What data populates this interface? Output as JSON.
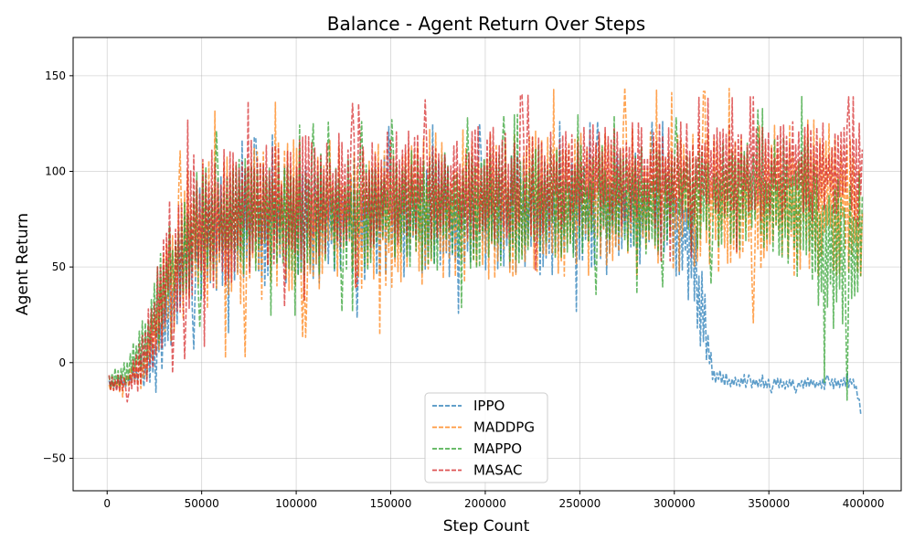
{
  "chart_data": {
    "type": "line",
    "title": "Balance - Agent Return Over Steps",
    "xlabel": "Step Count",
    "ylabel": "Agent Return",
    "xlim": [
      -18000,
      420000
    ],
    "ylim": [
      -67,
      170
    ],
    "xticks": [
      0,
      50000,
      100000,
      150000,
      200000,
      250000,
      300000,
      350000,
      400000
    ],
    "yticks": [
      -50,
      0,
      50,
      100,
      150
    ],
    "grid": true,
    "legend_position": "bottom-center",
    "line_style": "dashed",
    "series": [
      {
        "name": "IPPO",
        "color": "#1f77b4",
        "x": [
          0,
          10000,
          20000,
          30000,
          40000,
          50000,
          60000,
          70000,
          80000,
          90000,
          100000,
          120000,
          140000,
          160000,
          180000,
          200000,
          220000,
          240000,
          260000,
          280000,
          300000,
          305000,
          310000,
          315000,
          320000,
          330000,
          340000,
          360000,
          380000,
          395000,
          400000
        ],
        "mean": [
          -12,
          -10,
          -5,
          15,
          50,
          62,
          66,
          68,
          70,
          72,
          73,
          74,
          75,
          76,
          77,
          77,
          77,
          78,
          78,
          78,
          78,
          70,
          55,
          25,
          -6,
          -10,
          -11,
          -11,
          -11,
          -10,
          -30
        ],
        "amp": [
          3,
          4,
          8,
          18,
          30,
          32,
          32,
          32,
          32,
          32,
          32,
          32,
          32,
          32,
          32,
          32,
          32,
          32,
          32,
          32,
          32,
          34,
          35,
          30,
          5,
          3,
          3,
          3,
          3,
          3,
          3
        ]
      },
      {
        "name": "MADDPG",
        "color": "#ff7f0e",
        "x": [
          0,
          10000,
          20000,
          30000,
          40000,
          50000,
          60000,
          70000,
          80000,
          90000,
          100000,
          120000,
          140000,
          160000,
          180000,
          200000,
          220000,
          240000,
          260000,
          280000,
          300000,
          320000,
          340000,
          360000,
          380000,
          395000,
          400000
        ],
        "mean": [
          -13,
          -10,
          -2,
          30,
          60,
          68,
          70,
          72,
          74,
          76,
          77,
          78,
          79,
          80,
          82,
          82,
          82,
          83,
          83,
          84,
          84,
          85,
          85,
          86,
          86,
          87,
          60
        ],
        "amp": [
          3,
          5,
          12,
          28,
          38,
          40,
          42,
          44,
          42,
          40,
          40,
          40,
          40,
          42,
          42,
          40,
          40,
          40,
          40,
          40,
          38,
          38,
          40,
          42,
          42,
          40,
          35
        ]
      },
      {
        "name": "MAPPO",
        "color": "#2ca02c",
        "x": [
          0,
          10000,
          20000,
          30000,
          40000,
          50000,
          60000,
          70000,
          80000,
          100000,
          120000,
          140000,
          160000,
          180000,
          200000,
          220000,
          240000,
          260000,
          280000,
          300000,
          320000,
          340000,
          360000,
          370000,
          380000,
          395000,
          400000
        ],
        "mean": [
          -10,
          -5,
          10,
          40,
          62,
          70,
          74,
          76,
          76,
          76,
          78,
          78,
          80,
          80,
          80,
          82,
          82,
          84,
          84,
          86,
          86,
          86,
          84,
          80,
          60,
          50,
          70
        ],
        "amp": [
          4,
          8,
          15,
          25,
          30,
          32,
          32,
          32,
          32,
          32,
          32,
          32,
          32,
          32,
          32,
          32,
          32,
          30,
          30,
          28,
          28,
          30,
          35,
          40,
          45,
          45,
          40
        ]
      },
      {
        "name": "MASAC",
        "color": "#d62728",
        "x": [
          0,
          10000,
          20000,
          30000,
          40000,
          50000,
          60000,
          70000,
          80000,
          100000,
          120000,
          140000,
          160000,
          180000,
          200000,
          220000,
          240000,
          260000,
          280000,
          300000,
          320000,
          340000,
          360000,
          380000,
          395000,
          400000
        ],
        "mean": [
          -10,
          -12,
          0,
          45,
          65,
          72,
          76,
          80,
          82,
          86,
          88,
          90,
          92,
          93,
          94,
          95,
          96,
          97,
          98,
          98,
          99,
          100,
          100,
          100,
          100,
          95
        ],
        "amp": [
          4,
          5,
          18,
          35,
          40,
          40,
          40,
          38,
          36,
          34,
          32,
          30,
          30,
          30,
          30,
          30,
          28,
          28,
          28,
          28,
          26,
          26,
          26,
          26,
          26,
          30
        ]
      }
    ]
  }
}
